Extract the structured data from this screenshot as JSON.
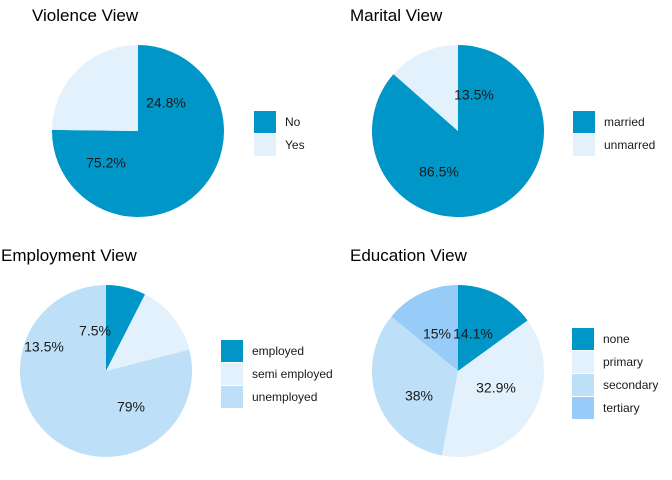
{
  "chart_data": [
    {
      "type": "pie",
      "title": "Violence View",
      "categories": [
        "No",
        "Yes"
      ],
      "values": [
        75.2,
        24.8
      ],
      "labels": [
        "75.2%",
        "24.8%"
      ],
      "colors": [
        "#0096C7",
        "#E2F1FB"
      ],
      "legend": "right"
    },
    {
      "type": "pie",
      "title": "Marital View",
      "categories": [
        "married",
        "unmarred"
      ],
      "values": [
        86.5,
        13.5
      ],
      "labels": [
        "86.5%",
        "13.5%"
      ],
      "colors": [
        "#0096C7",
        "#E2F1FB"
      ],
      "legend": "right"
    },
    {
      "type": "pie",
      "title": "Employment View",
      "categories": [
        "employed",
        "semi employed",
        "unemployed"
      ],
      "values": [
        7.5,
        13.5,
        79
      ],
      "labels": [
        "7.5%",
        "13.5%",
        "79%"
      ],
      "colors": [
        "#0096C7",
        "#E2F1FB",
        "#BDE0F8"
      ],
      "legend": "right"
    },
    {
      "type": "pie",
      "title": "Education View",
      "categories": [
        "none",
        "primary",
        "secondary",
        "tertiary"
      ],
      "values": [
        15,
        38,
        32.9,
        14.1
      ],
      "labels": [
        "15%",
        "38%",
        "32.9%",
        "14.1%"
      ],
      "colors": [
        "#0096C7",
        "#E2F1FB",
        "#BDE0F8",
        "#96CCF7"
      ],
      "legend": "right"
    }
  ]
}
